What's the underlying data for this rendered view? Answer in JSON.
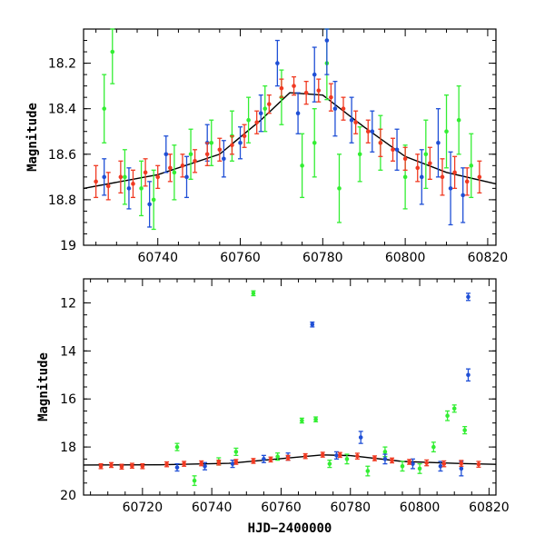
{
  "chart_data": [
    {
      "type": "scatter",
      "panel": "top",
      "ylabel": "Magnitude",
      "xlabel": "",
      "xlim": [
        60722,
        60822
      ],
      "ylim": [
        18.05,
        19.0
      ],
      "y_inverted": true,
      "xticks": [
        60740,
        60760,
        60780,
        60800,
        60820
      ],
      "yticks": [
        18.2,
        18.4,
        18.6,
        18.8,
        19
      ],
      "ytick_labels": [
        "18.2",
        "18.4",
        "18.6",
        "18.8",
        "19"
      ],
      "colors": {
        "green": "#33ee33",
        "blue": "#1f4fd6",
        "red": "#f03a22",
        "fit": "#000000"
      },
      "fit_line": {
        "x": [
          60722,
          60740,
          60755,
          60765,
          60772,
          60780,
          60790,
          60800,
          60810,
          60822
        ],
        "y": [
          18.75,
          18.69,
          18.6,
          18.45,
          18.33,
          18.34,
          18.48,
          18.61,
          18.68,
          18.73
        ]
      },
      "series": [
        {
          "color": "red",
          "x": [
            60725,
            60728,
            60731,
            60734,
            60737,
            60740,
            60743,
            60746,
            60749,
            60752,
            60755,
            60758,
            60761,
            60764,
            60767,
            60770,
            60773,
            60776,
            60779,
            60782,
            60785,
            60788,
            60791,
            60794,
            60797,
            60800,
            60803,
            60806,
            60809,
            60812,
            60815,
            60818
          ],
          "y": [
            18.72,
            18.74,
            18.7,
            18.73,
            18.68,
            18.7,
            18.66,
            18.65,
            18.63,
            18.6,
            18.58,
            18.56,
            18.52,
            18.46,
            18.38,
            18.31,
            18.3,
            18.33,
            18.32,
            18.35,
            18.4,
            18.46,
            18.5,
            18.55,
            18.58,
            18.62,
            18.66,
            18.64,
            18.7,
            18.68,
            18.72,
            18.7
          ],
          "err": [
            0.07,
            0.06,
            0.07,
            0.06,
            0.06,
            0.05,
            0.06,
            0.05,
            0.05,
            0.05,
            0.05,
            0.04,
            0.05,
            0.05,
            0.04,
            0.04,
            0.04,
            0.05,
            0.05,
            0.06,
            0.05,
            0.05,
            0.05,
            0.06,
            0.05,
            0.05,
            0.06,
            0.07,
            0.08,
            0.07,
            0.06,
            0.07
          ]
        },
        {
          "color": "blue",
          "x": [
            60727,
            60733,
            60738,
            60742,
            60747,
            60752,
            60756,
            60760,
            60765,
            60769,
            60774,
            60778,
            60781,
            60783,
            60787,
            60792,
            60798,
            60804,
            60808,
            60811,
            60814
          ],
          "y": [
            18.7,
            18.75,
            18.82,
            18.6,
            18.7,
            18.55,
            18.62,
            18.55,
            18.42,
            18.2,
            18.42,
            18.25,
            18.1,
            18.4,
            18.45,
            18.5,
            18.58,
            18.7,
            18.55,
            18.75,
            18.78
          ],
          "err": [
            0.08,
            0.09,
            0.1,
            0.08,
            0.09,
            0.08,
            0.08,
            0.07,
            0.08,
            0.1,
            0.09,
            0.12,
            0.15,
            0.12,
            0.1,
            0.09,
            0.09,
            0.12,
            0.15,
            0.16,
            0.12
          ]
        },
        {
          "color": "green",
          "x": [
            60727,
            60729,
            60732,
            60736,
            60739,
            60744,
            60748,
            60753,
            60758,
            60762,
            60766,
            60770,
            60775,
            60778,
            60781,
            60784,
            60789,
            60794,
            60800,
            60805,
            60810,
            60813,
            60816
          ],
          "y": [
            18.4,
            18.15,
            18.7,
            18.75,
            18.8,
            18.68,
            18.6,
            18.55,
            18.52,
            18.45,
            18.4,
            18.35,
            18.65,
            18.55,
            18.2,
            18.75,
            18.6,
            18.55,
            18.7,
            18.6,
            18.5,
            18.45,
            18.65
          ],
          "err": [
            0.15,
            0.14,
            0.12,
            0.12,
            0.13,
            0.12,
            0.11,
            0.1,
            0.11,
            0.1,
            0.1,
            0.12,
            0.14,
            0.15,
            0.16,
            0.15,
            0.12,
            0.12,
            0.14,
            0.15,
            0.16,
            0.15,
            0.14
          ]
        }
      ]
    },
    {
      "type": "scatter",
      "panel": "bottom",
      "ylabel": "Magnitude",
      "xlabel": "HJD−2400000",
      "xlim": [
        60703,
        60822
      ],
      "ylim": [
        11.0,
        20.0
      ],
      "y_inverted": true,
      "xticks": [
        60720,
        60740,
        60760,
        60780,
        60800,
        60820
      ],
      "yticks": [
        12,
        14,
        16,
        18,
        20
      ],
      "ytick_labels": [
        "12",
        "14",
        "16",
        "18",
        "20"
      ],
      "colors": {
        "green": "#33ee33",
        "blue": "#1f4fd6",
        "red": "#f03a22",
        "fit": "#000000"
      },
      "fit_line": {
        "x": [
          60703,
          60725,
          60745,
          60765,
          60772,
          60780,
          60795,
          60810,
          60822
        ],
        "y": [
          18.75,
          18.74,
          18.68,
          18.42,
          18.33,
          18.36,
          18.6,
          18.68,
          18.72
        ]
      },
      "series": [
        {
          "color": "red",
          "x": [
            60708,
            60711,
            60714,
            60717,
            60720,
            60727,
            60732,
            60737,
            60742,
            60747,
            60752,
            60757,
            60762,
            60767,
            60772,
            60777,
            60782,
            60787,
            60792,
            60797,
            60802,
            60807,
            60812,
            60817
          ],
          "y": [
            18.8,
            18.75,
            18.82,
            18.78,
            18.8,
            18.72,
            18.7,
            18.68,
            18.65,
            18.62,
            18.58,
            18.52,
            18.45,
            18.38,
            18.32,
            18.33,
            18.38,
            18.47,
            18.56,
            18.62,
            18.66,
            18.7,
            18.68,
            18.72
          ],
          "err": [
            0.1,
            0.1,
            0.1,
            0.1,
            0.1,
            0.1,
            0.1,
            0.1,
            0.1,
            0.1,
            0.1,
            0.1,
            0.1,
            0.1,
            0.1,
            0.1,
            0.12,
            0.1,
            0.1,
            0.1,
            0.12,
            0.12,
            0.12,
            0.12
          ]
        },
        {
          "color": "blue",
          "x": [
            60730,
            60738,
            60746,
            60755,
            60762,
            60769,
            60776,
            60783,
            60790,
            60798,
            60806,
            60812,
            60814,
            60814
          ],
          "y": [
            18.85,
            18.8,
            18.7,
            18.5,
            18.4,
            12.9,
            18.35,
            17.6,
            18.5,
            18.7,
            18.8,
            18.9,
            11.75,
            15.0
          ],
          "err": [
            0.15,
            0.15,
            0.15,
            0.15,
            0.15,
            0.1,
            0.15,
            0.25,
            0.2,
            0.2,
            0.2,
            0.3,
            0.15,
            0.25
          ]
        },
        {
          "color": "green",
          "x": [
            60730,
            60735,
            60742,
            60747,
            60752,
            60759,
            60766,
            60770,
            60774,
            60779,
            60785,
            60790,
            60795,
            60800,
            60804,
            60808,
            60810,
            60813
          ],
          "y": [
            18.0,
            19.4,
            18.6,
            18.2,
            11.6,
            18.4,
            16.9,
            16.85,
            18.7,
            18.5,
            19.0,
            18.2,
            18.8,
            18.9,
            18.0,
            16.7,
            16.4,
            17.3
          ],
          "err": [
            0.15,
            0.2,
            0.15,
            0.15,
            0.1,
            0.15,
            0.1,
            0.1,
            0.15,
            0.2,
            0.2,
            0.2,
            0.2,
            0.2,
            0.2,
            0.2,
            0.15,
            0.15
          ]
        }
      ]
    }
  ]
}
